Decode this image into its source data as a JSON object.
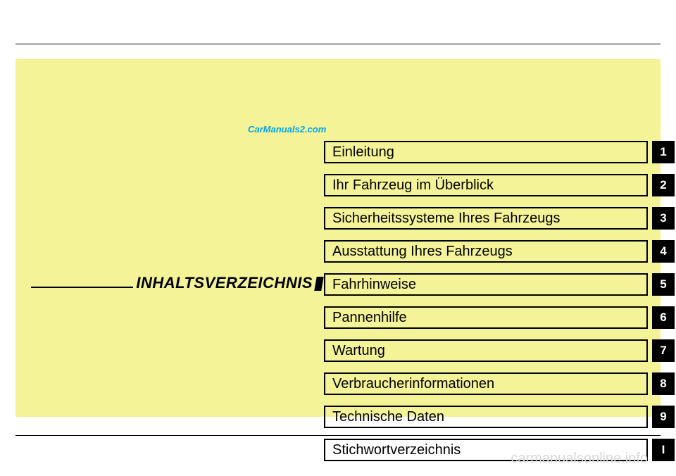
{
  "watermark_top": "CarManuals2.com",
  "watermark_bottom": "carmanualsonline.info",
  "heading": "INHALTSVERZEICHNIS",
  "colors": {
    "panel_bg": "#f4f397",
    "page_bg": "#ffffff",
    "border": "#000000",
    "tab_bg": "#000000",
    "tab_fg": "#ffffff",
    "watermark_top": "#00a5ef",
    "watermark_bottom": "#d8d8d8"
  },
  "toc": [
    {
      "label": "Einleitung",
      "tab": "1"
    },
    {
      "label": "Ihr Fahrzeug im Überblick",
      "tab": "2"
    },
    {
      "label": "Sicherheitssysteme Ihres Fahrzeugs",
      "tab": "3"
    },
    {
      "label": "Ausstattung Ihres Fahrzeugs",
      "tab": "4"
    },
    {
      "label": "Fahrhinweise",
      "tab": "5"
    },
    {
      "label": "Pannenhilfe",
      "tab": "6"
    },
    {
      "label": "Wartung",
      "tab": "7"
    },
    {
      "label": "Verbraucherinformationen",
      "tab": "8"
    },
    {
      "label": "Technische Daten",
      "tab": "9"
    },
    {
      "label": "Stichwortverzeichnis",
      "tab": "I"
    }
  ]
}
